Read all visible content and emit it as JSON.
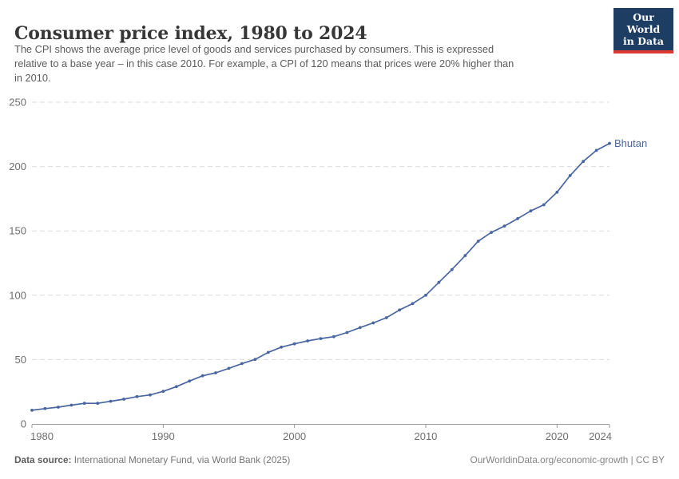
{
  "header": {
    "title": "Consumer price index, 1980 to 2024",
    "subtitle_lines": [
      "The CPI shows the average price level of goods and services purchased by consumers. This is expressed",
      "relative to a base year – in this case 2010. For example, a CPI of 120 means that prices were 20% higher than",
      "in 2010."
    ]
  },
  "logo": {
    "line1": "Our World",
    "line2": "in Data"
  },
  "chart_data": {
    "type": "line",
    "title": "Consumer price index, 1980 to 2024",
    "xlabel": "",
    "ylabel": "",
    "xlim": [
      1980,
      2024
    ],
    "ylim": [
      0,
      250
    ],
    "xticks": [
      1980,
      1990,
      2000,
      2010,
      2020,
      2024
    ],
    "yticks": [
      0,
      50,
      100,
      150,
      200,
      250
    ],
    "grid": "horizontal-dashed",
    "legend": "end-of-line-label",
    "x": [
      1980,
      1981,
      1982,
      1983,
      1984,
      1985,
      1986,
      1987,
      1988,
      1989,
      1990,
      1991,
      1992,
      1993,
      1994,
      1995,
      1996,
      1997,
      1998,
      1999,
      2000,
      2001,
      2002,
      2003,
      2004,
      2005,
      2006,
      2007,
      2008,
      2009,
      2010,
      2011,
      2012,
      2013,
      2014,
      2015,
      2016,
      2017,
      2018,
      2019,
      2020,
      2021,
      2022,
      2023,
      2024
    ],
    "series": [
      {
        "name": "Bhutan",
        "color": "#4a66a0",
        "values": [
          10.6,
          11.9,
          13.0,
          14.6,
          16.0,
          16.0,
          17.6,
          19.2,
          21.2,
          22.5,
          25.3,
          29.0,
          33.3,
          37.4,
          39.7,
          43.2,
          46.9,
          50.1,
          55.6,
          59.7,
          62.2,
          64.5,
          66.3,
          67.8,
          71.0,
          74.9,
          78.5,
          82.5,
          88.5,
          93.5,
          100.0,
          110.0,
          120.0,
          130.8,
          142.0,
          148.8,
          153.7,
          159.5,
          165.5,
          170.3,
          180.0,
          193.0,
          204.0,
          212.5,
          218.0
        ]
      }
    ]
  },
  "footer": {
    "datasource_label": "Data source:",
    "datasource_text": " International Monetary Fund, via World Bank (2025)",
    "credit": "OurWorldinData.org/economic-growth | CC BY"
  },
  "colors": {
    "line": "#4a66a0",
    "grid": "#dcdcdc",
    "axis": "#9a9a9a",
    "tick_label": "#6e6e6e",
    "logo_background": "#1d3d63",
    "logo_stripe": "#dc3b34"
  }
}
